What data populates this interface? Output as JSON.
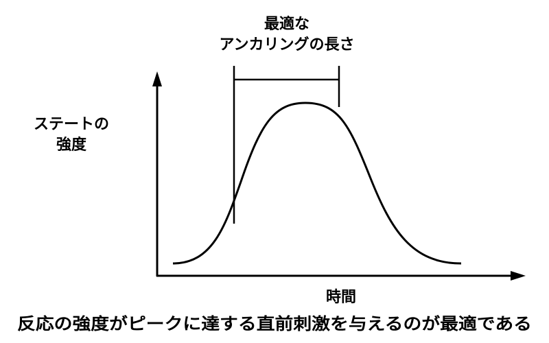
{
  "diagram": {
    "anchoring_label": {
      "line1": "最適な",
      "line2": "アンカリングの長さ"
    },
    "y_axis_label": {
      "line1": "ステートの",
      "line2": "強度"
    },
    "x_axis_label": "時間",
    "caption": "反応の強度がピークに達する直前刺激を与えるのが最適である",
    "colors": {
      "stroke": "#000000",
      "background": "#ffffff"
    }
  }
}
